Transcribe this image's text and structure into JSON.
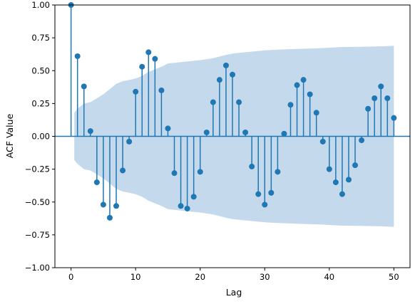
{
  "chart_data": {
    "type": "stem",
    "title": "",
    "xlabel": "Lag",
    "ylabel": "ACF Value",
    "xlim": [
      -2.5,
      52.5
    ],
    "ylim": [
      -1.0,
      1.0
    ],
    "xticks": [
      0,
      10,
      20,
      30,
      40,
      50
    ],
    "yticks": [
      -1.0,
      -0.75,
      -0.5,
      -0.25,
      0.0,
      0.25,
      0.5,
      0.75,
      1.0
    ],
    "xtick_labels": [
      "0",
      "10",
      "20",
      "30",
      "40",
      "50"
    ],
    "ytick_labels": [
      "−1.00",
      "−0.75",
      "−0.50",
      "−0.25",
      "0.00",
      "0.25",
      "0.50",
      "0.75",
      "1.00"
    ],
    "grid": false,
    "colors": {
      "stem": "#1f77b4",
      "band": "#c5d9ec",
      "zero_line": "#1f77b4"
    },
    "lags": [
      0,
      1,
      2,
      3,
      4,
      5,
      6,
      7,
      8,
      9,
      10,
      11,
      12,
      13,
      14,
      15,
      16,
      17,
      18,
      19,
      20,
      21,
      22,
      23,
      24,
      25,
      26,
      27,
      28,
      29,
      30,
      31,
      32,
      33,
      34,
      35,
      36,
      37,
      38,
      39,
      40,
      41,
      42,
      43,
      44,
      45,
      46,
      47,
      48,
      49,
      50
    ],
    "acf": [
      1.0,
      0.61,
      0.38,
      0.04,
      -0.35,
      -0.52,
      -0.62,
      -0.53,
      -0.26,
      -0.04,
      0.34,
      0.53,
      0.64,
      0.59,
      0.35,
      0.06,
      -0.28,
      -0.53,
      -0.55,
      -0.46,
      -0.27,
      0.03,
      0.26,
      0.43,
      0.54,
      0.47,
      0.26,
      0.03,
      -0.23,
      -0.44,
      -0.52,
      -0.43,
      -0.27,
      0.02,
      0.24,
      0.39,
      0.43,
      0.32,
      0.18,
      -0.04,
      -0.25,
      -0.35,
      -0.44,
      -0.33,
      -0.22,
      -0.03,
      0.21,
      0.29,
      0.38,
      0.29,
      0.14
    ],
    "confidence_band": {
      "lags": [
        0.5,
        1,
        2,
        3,
        4,
        5,
        6,
        7,
        8,
        9,
        10,
        11,
        12,
        13,
        14,
        15,
        16,
        17,
        18,
        20,
        22,
        24,
        25,
        26,
        28,
        30,
        32,
        35,
        38,
        40,
        42,
        45,
        48,
        50
      ],
      "upper": [
        0.18,
        0.21,
        0.25,
        0.26,
        0.29,
        0.32,
        0.36,
        0.4,
        0.42,
        0.43,
        0.44,
        0.46,
        0.49,
        0.51,
        0.53,
        0.555,
        0.56,
        0.565,
        0.57,
        0.58,
        0.595,
        0.62,
        0.63,
        0.635,
        0.645,
        0.655,
        0.66,
        0.665,
        0.67,
        0.675,
        0.68,
        0.682,
        0.685,
        0.69
      ]
    }
  }
}
